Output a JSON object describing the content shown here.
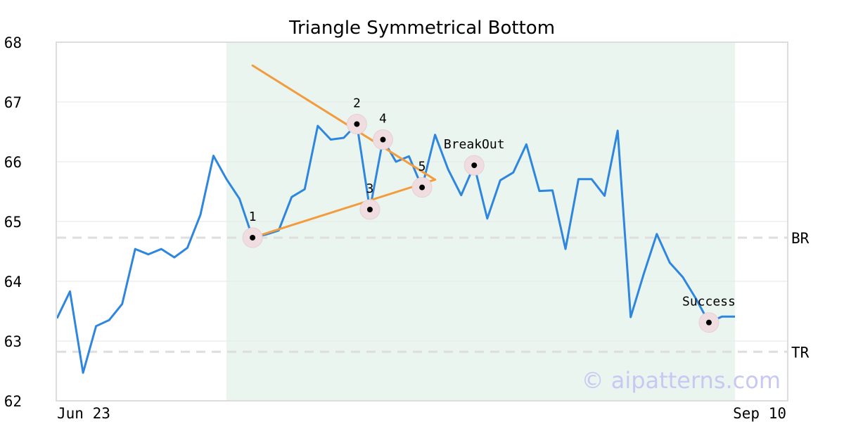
{
  "chart_data": {
    "type": "line",
    "title": "Triangle Symmetrical Bottom",
    "xlabel": "",
    "ylabel": "",
    "ylim": [
      62,
      68
    ],
    "yticks": [
      62,
      63,
      64,
      65,
      66,
      67,
      68
    ],
    "x_tick_labels": [
      "Jun 23",
      "Sep 10"
    ],
    "grid": true,
    "series": [
      {
        "color": "#2e86de",
        "values": [
          63.38,
          63.83,
          62.47,
          63.25,
          63.35,
          63.62,
          64.54,
          64.45,
          64.54,
          64.4,
          64.56,
          65.11,
          66.1,
          65.71,
          65.38,
          64.73,
          64.78,
          64.85,
          65.41,
          65.54,
          66.6,
          66.37,
          66.4,
          66.63,
          65.2,
          66.37,
          66.0,
          66.09,
          65.57,
          66.45,
          65.87,
          65.44,
          65.94,
          65.05,
          65.69,
          65.82,
          66.29,
          65.51,
          65.52,
          64.54,
          65.71,
          65.71,
          65.43,
          66.52,
          63.4,
          64.12,
          64.79,
          64.31,
          64.07,
          63.71,
          63.31,
          63.41,
          63.41
        ]
      }
    ],
    "pattern_region": {
      "start_index": 13,
      "end_index": 52,
      "color": "#eaf5f0"
    },
    "trendlines": [
      {
        "color": "#f39c3d",
        "x0": 15,
        "y0": 67.61,
        "x1": 29,
        "y1": 65.7
      },
      {
        "color": "#f39c3d",
        "x0": 15,
        "y0": 64.73,
        "x1": 29,
        "y1": 65.7
      }
    ],
    "points": [
      {
        "label": "1",
        "x": 15,
        "y": 64.73,
        "label_pos": "above"
      },
      {
        "label": "2",
        "x": 23,
        "y": 66.63,
        "label_pos": "above"
      },
      {
        "label": "3",
        "x": 24,
        "y": 65.2,
        "label_pos": "above"
      },
      {
        "label": "4",
        "x": 25,
        "y": 66.37,
        "label_pos": "above"
      },
      {
        "label": "5",
        "x": 28,
        "y": 65.57,
        "label_pos": "above"
      },
      {
        "label": "BreakOut",
        "x": 32,
        "y": 65.94,
        "label_pos": "above"
      },
      {
        "label": "Success",
        "x": 50,
        "y": 63.31,
        "label_pos": "above"
      }
    ],
    "reference_lines": [
      {
        "label": "BR",
        "y": 64.73
      },
      {
        "label": "TR",
        "y": 62.82
      }
    ],
    "watermark": "© aipatterns.com"
  }
}
